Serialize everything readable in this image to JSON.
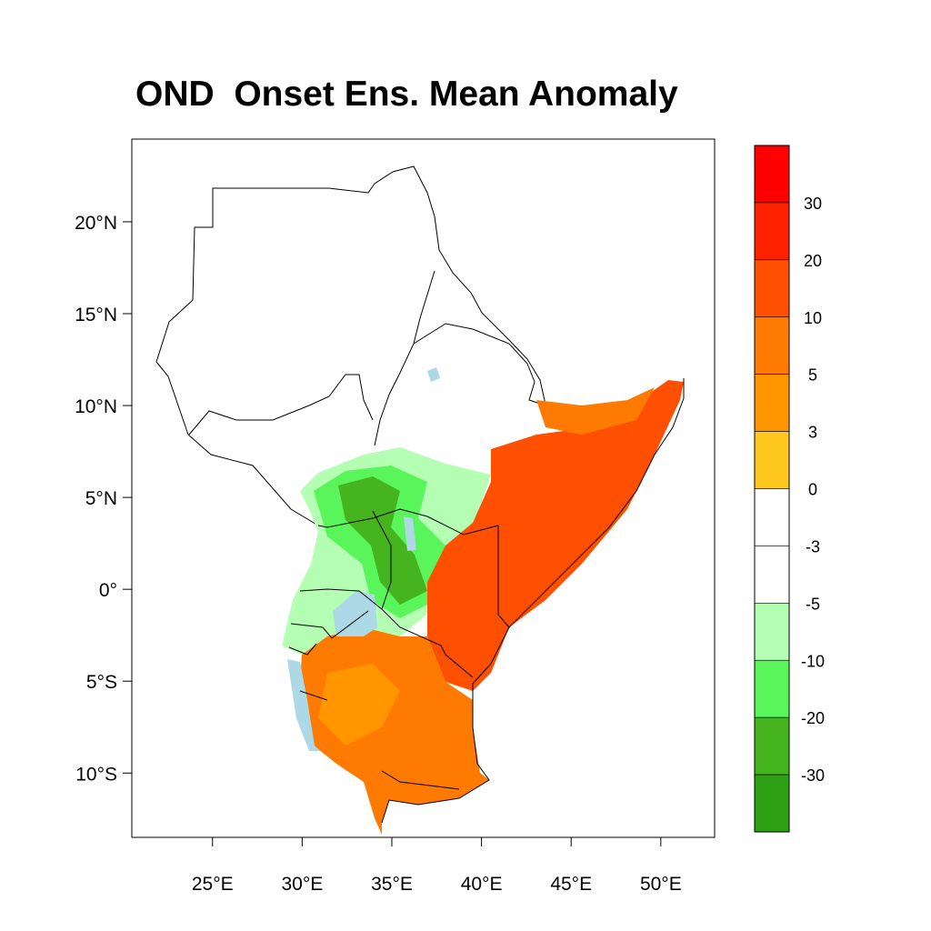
{
  "title": "OND  Onset Ens. Mean Anomaly",
  "map": {
    "projection": "cylindrical-equidistant",
    "lon_range": [
      20.5,
      53.0
    ],
    "lat_range": [
      -13.5,
      24.5
    ],
    "lat_ticks": [
      {
        "value": 20,
        "label": "20°N"
      },
      {
        "value": 15,
        "label": "15°N"
      },
      {
        "value": 10,
        "label": "10°N"
      },
      {
        "value": 5,
        "label": "5°N"
      },
      {
        "value": 0,
        "label": "0°"
      },
      {
        "value": -5,
        "label": "5°S"
      },
      {
        "value": -10,
        "label": "10°S"
      }
    ],
    "lon_ticks": [
      {
        "value": 25,
        "label": "25°E"
      },
      {
        "value": 30,
        "label": "30°E"
      },
      {
        "value": 35,
        "label": "35°E"
      },
      {
        "value": 40,
        "label": "40°E"
      },
      {
        "value": 45,
        "label": "45°E"
      },
      {
        "value": 50,
        "label": "50°E"
      }
    ],
    "colors": {
      "land_no_data": "#ffffff",
      "lakes": "#add8e6",
      "borders": "#000000"
    }
  },
  "colorbar": {
    "labels": [
      "30",
      "20",
      "10",
      "5",
      "3",
      "0",
      "-3",
      "-5",
      "-10",
      "-20",
      "-30"
    ],
    "colors_top_to_bottom": [
      "#ff0000",
      "#ff2200",
      "#ff4f00",
      "#ff7a00",
      "#ff9600",
      "#ffc81e",
      "#ffffff",
      "#ffffff",
      "#b4ffb4",
      "#5af55a",
      "#46b41e",
      "#2da014"
    ]
  }
}
